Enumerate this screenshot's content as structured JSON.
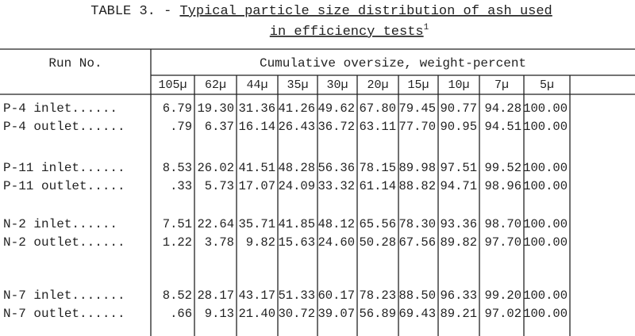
{
  "title": {
    "prefix": "TABLE 3. - ",
    "line1": "Typical particle size distribution of ash used",
    "line2": "in efficiency tests",
    "footnote": "1"
  },
  "header": {
    "run_no": "Run No.",
    "group": "Cumulative oversize, weight-percent",
    "sizes": [
      "105µ",
      "62µ",
      "44µ",
      "35µ",
      "30µ",
      "20µ",
      "15µ",
      "10µ",
      "7µ",
      "5µ"
    ]
  },
  "rows": [
    {
      "label": "P-4 inlet......",
      "values": [
        "6.79",
        "19.30",
        "31.36",
        "41.26",
        "49.62",
        "67.80",
        "79.45",
        "90.77",
        "94.28",
        "100.00"
      ]
    },
    {
      "label": "P-4 outlet......",
      "values": [
        ".79",
        "6.37",
        "16.14",
        "26.43",
        "36.72",
        "63.11",
        "77.70",
        "90.95",
        "94.51",
        "100.00"
      ]
    },
    {
      "label": "P-11 inlet......",
      "values": [
        "8.53",
        "26.02",
        "41.51",
        "48.28",
        "56.36",
        "78.15",
        "89.98",
        "97.51",
        "99.52",
        "100.00"
      ]
    },
    {
      "label": "P-11 outlet.....",
      "values": [
        ".33",
        "5.73",
        "17.07",
        "24.09",
        "33.32",
        "61.14",
        "88.82",
        "94.71",
        "98.96",
        "100.00"
      ]
    },
    {
      "label": "N-2 inlet......",
      "values": [
        "7.51",
        "22.64",
        "35.71",
        "41.85",
        "48.12",
        "65.56",
        "78.30",
        "93.36",
        "98.70",
        "100.00"
      ]
    },
    {
      "label": "N-2 outlet......",
      "values": [
        "1.22",
        "3.78",
        "9.82",
        "15.63",
        "24.60",
        "50.28",
        "67.56",
        "89.82",
        "97.70",
        "100.00"
      ]
    },
    {
      "label": "N-7 inlet.......",
      "values": [
        "8.52",
        "28.17",
        "43.17",
        "51.33",
        "60.17",
        "78.23",
        "88.50",
        "96.33",
        "99.20",
        "100.00"
      ]
    },
    {
      "label": "N-7 outlet......",
      "values": [
        ".66",
        "9.13",
        "21.40",
        "30.72",
        "39.07",
        "56.89",
        "69.43",
        "89.21",
        "97.02",
        "100.00"
      ]
    }
  ]
}
